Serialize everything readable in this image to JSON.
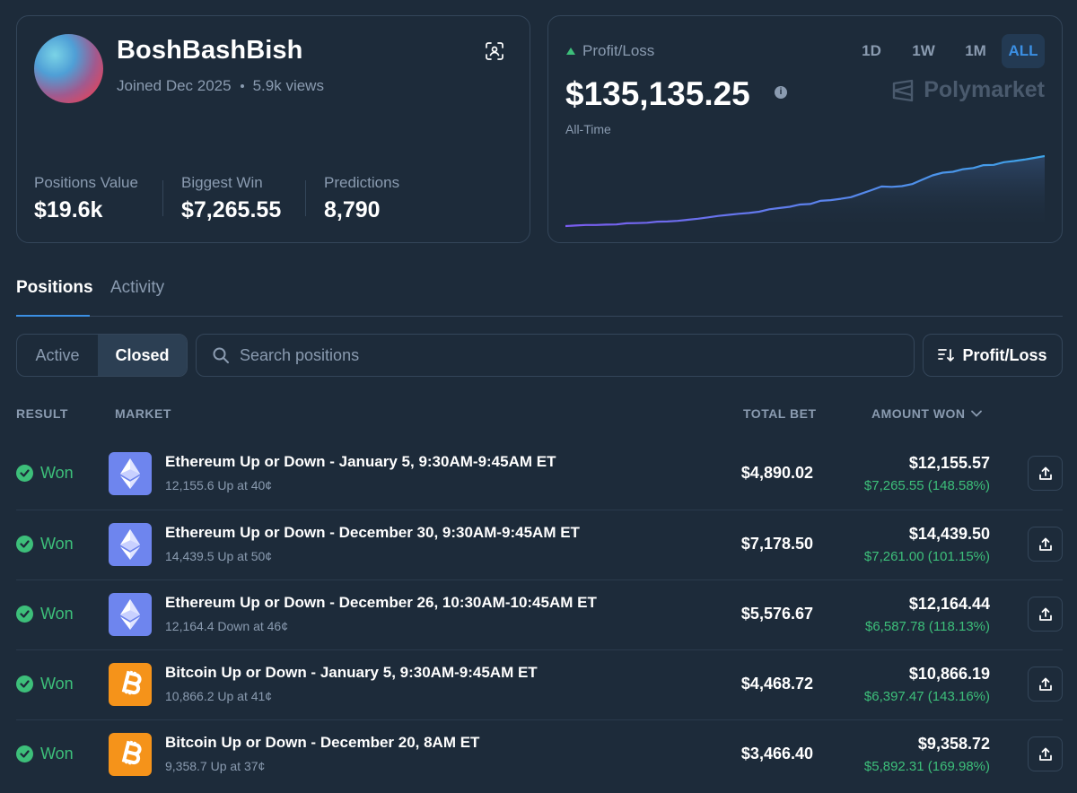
{
  "profile": {
    "username": "BoshBashBish",
    "joined": "Joined Dec 2025",
    "views": "5.9k views",
    "stats": [
      {
        "label": "Positions Value",
        "value": "$19.6k"
      },
      {
        "label": "Biggest Win",
        "value": "$7,265.55"
      },
      {
        "label": "Predictions",
        "value": "8,790"
      }
    ]
  },
  "pnl": {
    "title": "Profit/Loss",
    "value": "$135,135.25",
    "period_label": "All-Time",
    "ranges": [
      "1D",
      "1W",
      "1M",
      "ALL"
    ],
    "active_range": "ALL",
    "brand": "Polymarket",
    "series": [
      0.0,
      0.3,
      0.6,
      0.6,
      0.8,
      0.9,
      1.6,
      1.7,
      1.9,
      2.5,
      2.6,
      3.0,
      3.6,
      4.2,
      5.0,
      5.8,
      6.4,
      7.0,
      7.5,
      8.2,
      9.6,
      10.3,
      11.0,
      12.3,
      12.6,
      14.4,
      14.8,
      15.6,
      16.5,
      18.5,
      20.5,
      22.6,
      22.4,
      22.8,
      24.0,
      26.5,
      29.0,
      30.5,
      31.0,
      32.5,
      33.2,
      34.8,
      35.0,
      36.5,
      37.2,
      38.0,
      39.0,
      40.0
    ],
    "colors": {
      "line_start": "#7b5cf0",
      "line_end": "#3ea4e8"
    }
  },
  "tabs": {
    "positions": "Positions",
    "activity": "Activity"
  },
  "filters": {
    "active": "Active",
    "closed": "Closed",
    "search_placeholder": "Search positions",
    "sort_label": "Profit/Loss"
  },
  "table": {
    "headers": {
      "result": "RESULT",
      "market": "MARKET",
      "total_bet": "TOTAL BET",
      "amount_won": "AMOUNT WON"
    },
    "rows": [
      {
        "result": "Won",
        "coin": "eth",
        "title": "Ethereum Up or Down - January 5, 9:30AM-9:45AM ET",
        "sub": "12,155.6 Up at 40¢",
        "bet": "$4,890.02",
        "won": "$12,155.57",
        "profit": "$7,265.55 (148.58%)"
      },
      {
        "result": "Won",
        "coin": "eth",
        "title": "Ethereum Up or Down - December 30, 9:30AM-9:45AM ET",
        "sub": "14,439.5 Up at 50¢",
        "bet": "$7,178.50",
        "won": "$14,439.50",
        "profit": "$7,261.00 (101.15%)"
      },
      {
        "result": "Won",
        "coin": "eth",
        "title": "Ethereum Up or Down - December 26, 10:30AM-10:45AM ET",
        "sub": "12,164.4 Down at 46¢",
        "bet": "$5,576.67",
        "won": "$12,164.44",
        "profit": "$6,587.78 (118.13%)"
      },
      {
        "result": "Won",
        "coin": "btc",
        "title": "Bitcoin Up or Down - January 5, 9:30AM-9:45AM ET",
        "sub": "10,866.2 Up at 41¢",
        "bet": "$4,468.72",
        "won": "$10,866.19",
        "profit": "$6,397.47 (143.16%)"
      },
      {
        "result": "Won",
        "coin": "btc",
        "title": "Bitcoin Up or Down - December 20, 8AM ET",
        "sub": "9,358.7 Up at 37¢",
        "bet": "$3,466.40",
        "won": "$9,358.72",
        "profit": "$5,892.31 (169.98%)"
      }
    ]
  }
}
